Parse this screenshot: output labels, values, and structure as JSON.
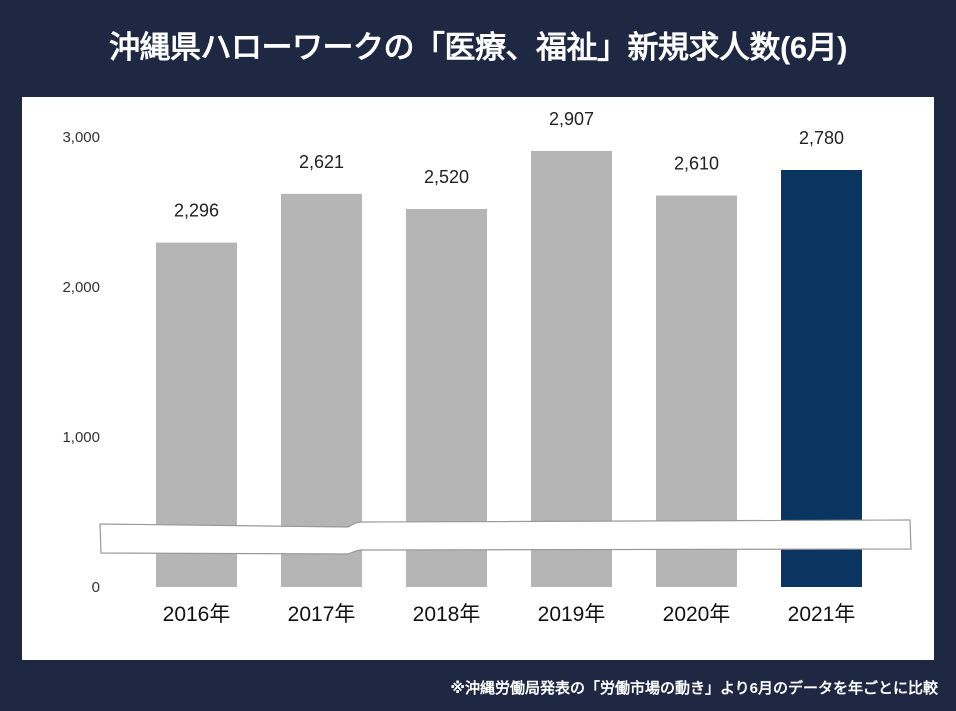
{
  "title": "沖縄県ハローワークの「医療、福祉」新規求人数(6月)",
  "note": "※沖縄労働局発表の「労働市場の動き」より6月のデータを年ごとに比較",
  "colors": {
    "background": "#1e2843",
    "bar": "#b5b5b5",
    "highlight_bar": "#0a3560"
  },
  "chart_data": {
    "type": "bar",
    "title": "沖縄県ハローワークの「医療、福祉」新規求人数(6月)",
    "categories": [
      "2016年",
      "2017年",
      "2018年",
      "2019年",
      "2020年",
      "2021年"
    ],
    "values": [
      2296,
      2621,
      2520,
      2907,
      2610,
      2780
    ],
    "data_labels": [
      "2,296",
      "2,621",
      "2,520",
      "2,907",
      "2,610",
      "2,780"
    ],
    "highlight_index": 5,
    "ylim": [
      0,
      3000
    ],
    "yticks": [
      0,
      1000,
      2000,
      3000
    ],
    "ytick_labels": [
      "0",
      "1,000",
      "2,000",
      "3,000"
    ],
    "axis_break": true,
    "grid": false,
    "xlabel": "",
    "ylabel": ""
  }
}
